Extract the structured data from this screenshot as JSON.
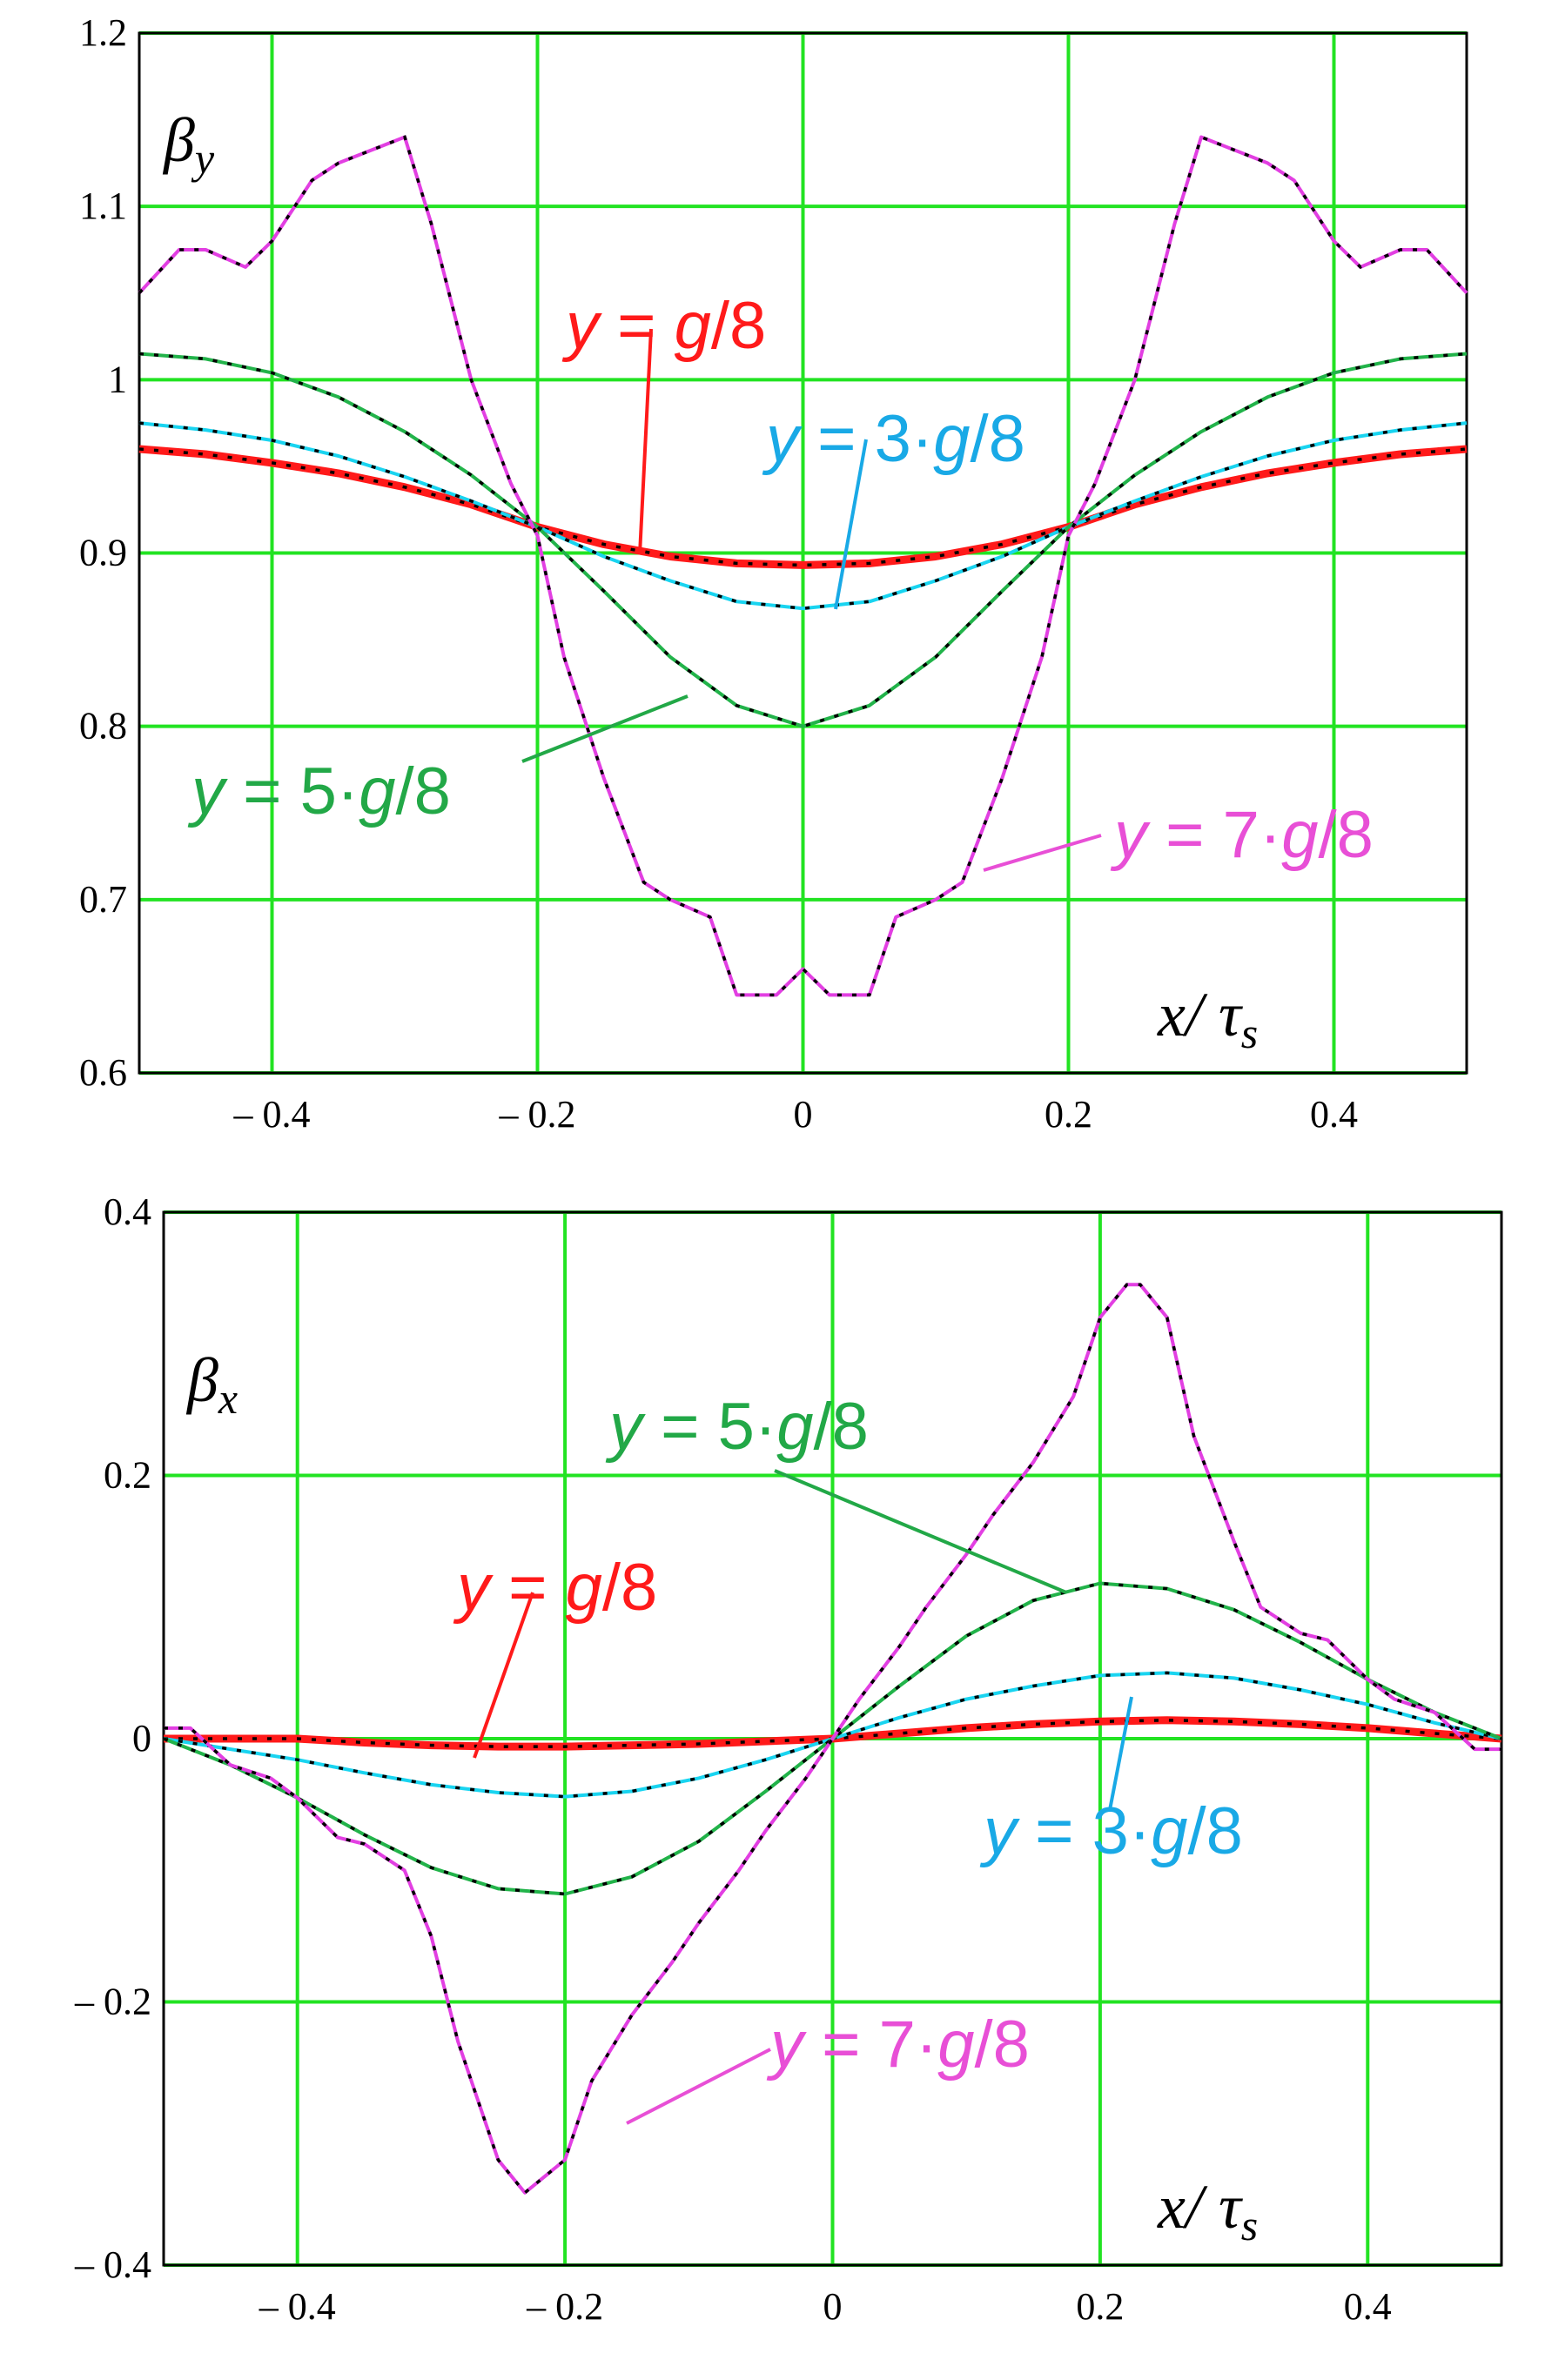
{
  "chart_data": [
    {
      "type": "line",
      "ylabel_symbol": "β",
      "ylabel_sub": "y",
      "xlabel_var": "x",
      "xlabel_sep": "/ ",
      "xlabel_sym": "τ",
      "xlabel_sub": "s",
      "xlim": [
        -0.5,
        0.5
      ],
      "ylim": [
        0.6,
        1.2
      ],
      "xticks": [
        -0.4,
        -0.2,
        0,
        0.2,
        0.4
      ],
      "xtick_labels": [
        "– 0.4",
        "– 0.2",
        "0",
        "0.2",
        "0.4"
      ],
      "yticks": [
        0.6,
        0.7,
        0.8,
        0.9,
        1.0,
        1.1,
        1.2
      ],
      "ytick_labels": [
        "0.6",
        "0.7",
        "0.8",
        "0.9",
        "1",
        "1.1",
        "1.2"
      ],
      "grid": true,
      "grid_color": "#22e322",
      "series": [
        {
          "label": "y = g/8",
          "color": "#ff1a1a",
          "x": [
            -0.5,
            -0.45,
            -0.4,
            -0.35,
            -0.3,
            -0.25,
            -0.2,
            -0.15,
            -0.1,
            -0.05,
            0,
            0.05,
            0.1,
            0.15,
            0.2,
            0.25,
            0.3,
            0.35,
            0.4,
            0.45,
            0.5
          ],
          "y": [
            0.96,
            0.957,
            0.952,
            0.946,
            0.938,
            0.928,
            0.915,
            0.905,
            0.898,
            0.894,
            0.893,
            0.894,
            0.898,
            0.905,
            0.915,
            0.928,
            0.938,
            0.946,
            0.952,
            0.957,
            0.96
          ]
        },
        {
          "label": "y = 3·g/8",
          "color": "#19d4f0",
          "x": [
            -0.5,
            -0.45,
            -0.4,
            -0.35,
            -0.3,
            -0.25,
            -0.2,
            -0.15,
            -0.1,
            -0.05,
            0,
            0.05,
            0.1,
            0.15,
            0.2,
            0.25,
            0.3,
            0.35,
            0.4,
            0.45,
            0.5
          ],
          "y": [
            0.975,
            0.971,
            0.965,
            0.956,
            0.944,
            0.93,
            0.915,
            0.898,
            0.884,
            0.872,
            0.868,
            0.872,
            0.884,
            0.898,
            0.915,
            0.93,
            0.944,
            0.956,
            0.965,
            0.971,
            0.975
          ]
        },
        {
          "label": "y = 5·g/8",
          "color": "#22b34a",
          "x": [
            -0.5,
            -0.45,
            -0.4,
            -0.35,
            -0.3,
            -0.25,
            -0.2,
            -0.15,
            -0.1,
            -0.05,
            0,
            0.05,
            0.1,
            0.15,
            0.2,
            0.25,
            0.3,
            0.35,
            0.4,
            0.45,
            0.5
          ],
          "y": [
            1.015,
            1.012,
            1.004,
            0.99,
            0.97,
            0.945,
            0.915,
            0.878,
            0.84,
            0.812,
            0.8,
            0.812,
            0.84,
            0.878,
            0.915,
            0.945,
            0.97,
            0.99,
            1.004,
            1.012,
            1.015
          ]
        },
        {
          "label": "y = 7·g/8",
          "color": "#e23fe2",
          "x": [
            -0.5,
            -0.47,
            -0.45,
            -0.42,
            -0.4,
            -0.37,
            -0.35,
            -0.3,
            -0.28,
            -0.25,
            -0.22,
            -0.2,
            -0.18,
            -0.15,
            -0.12,
            -0.1,
            -0.07,
            -0.05,
            -0.02,
            0,
            0.02,
            0.05,
            0.07,
            0.1,
            0.12,
            0.15,
            0.18,
            0.2,
            0.22,
            0.25,
            0.28,
            0.3,
            0.35,
            0.37,
            0.4,
            0.42,
            0.45,
            0.47,
            0.5
          ],
          "y": [
            1.05,
            1.075,
            1.075,
            1.065,
            1.08,
            1.115,
            1.125,
            1.14,
            1.09,
            1.0,
            0.94,
            0.91,
            0.84,
            0.77,
            0.71,
            0.7,
            0.69,
            0.645,
            0.645,
            0.66,
            0.645,
            0.645,
            0.69,
            0.7,
            0.71,
            0.77,
            0.84,
            0.91,
            0.94,
            1.0,
            1.09,
            1.14,
            1.125,
            1.115,
            1.08,
            1.065,
            1.075,
            1.075,
            1.05
          ]
        }
      ],
      "annotations": [
        {
          "var": "y",
          "rest": " = ",
          "italic2": "g",
          "tail": "/8",
          "color": "#ff1a1a"
        },
        {
          "var": "y",
          "rest": " = 3·",
          "italic2": "g",
          "tail": "/8",
          "color": "#19a9e6"
        },
        {
          "var": "y",
          "rest": " = 5·",
          "italic2": "g",
          "tail": "/8",
          "color": "#22a847"
        },
        {
          "var": "y",
          "rest": " = 7·",
          "italic2": "g",
          "tail": "/8",
          "color": "#e84fd6"
        }
      ]
    },
    {
      "type": "line",
      "ylabel_symbol": "β",
      "ylabel_sub": "x",
      "xlabel_var": "x",
      "xlabel_sep": "/ ",
      "xlabel_sym": "τ",
      "xlabel_sub": "s",
      "xlim": [
        -0.5,
        0.5
      ],
      "ylim": [
        -0.4,
        0.4
      ],
      "xticks": [
        -0.4,
        -0.2,
        0,
        0.2,
        0.4
      ],
      "xtick_labels": [
        "– 0.4",
        "– 0.2",
        "0",
        "0.2",
        "0.4"
      ],
      "yticks": [
        -0.4,
        -0.2,
        0,
        0.2,
        0.4
      ],
      "ytick_labels": [
        "– 0.4",
        "– 0.2",
        "0",
        "0.2",
        "0.4"
      ],
      "grid": true,
      "grid_color": "#22e322",
      "series": [
        {
          "label": "y = g/8",
          "color": "#ff1a1a",
          "x": [
            -0.5,
            -0.45,
            -0.4,
            -0.35,
            -0.3,
            -0.25,
            -0.2,
            -0.15,
            -0.1,
            -0.05,
            0,
            0.05,
            0.1,
            0.15,
            0.2,
            0.25,
            0.3,
            0.35,
            0.4,
            0.45,
            0.5
          ],
          "y": [
            0,
            0,
            0,
            -0.003,
            -0.005,
            -0.006,
            -0.006,
            -0.005,
            -0.004,
            -0.002,
            0,
            0.004,
            0.008,
            0.011,
            0.013,
            0.014,
            0.013,
            0.011,
            0.008,
            0.004,
            0
          ]
        },
        {
          "label": "y = 3·g/8",
          "color": "#19d4f0",
          "x": [
            -0.5,
            -0.45,
            -0.4,
            -0.35,
            -0.3,
            -0.25,
            -0.2,
            -0.15,
            -0.1,
            -0.05,
            0,
            0.05,
            0.1,
            0.15,
            0.2,
            0.25,
            0.3,
            0.35,
            0.4,
            0.45,
            0.5
          ],
          "y": [
            0,
            -0.008,
            -0.016,
            -0.026,
            -0.035,
            -0.041,
            -0.044,
            -0.04,
            -0.03,
            -0.016,
            0,
            0.016,
            0.03,
            0.04,
            0.048,
            0.05,
            0.046,
            0.037,
            0.026,
            0.012,
            0
          ]
        },
        {
          "label": "y = 5·g/8",
          "color": "#22b34a",
          "x": [
            -0.5,
            -0.45,
            -0.4,
            -0.35,
            -0.3,
            -0.25,
            -0.2,
            -0.15,
            -0.1,
            -0.05,
            0,
            0.05,
            0.1,
            0.15,
            0.2,
            0.25,
            0.3,
            0.35,
            0.4,
            0.45,
            0.5
          ],
          "y": [
            0,
            -0.02,
            -0.045,
            -0.073,
            -0.098,
            -0.114,
            -0.118,
            -0.105,
            -0.078,
            -0.04,
            0,
            0.04,
            0.078,
            0.105,
            0.118,
            0.114,
            0.098,
            0.073,
            0.045,
            0.02,
            0
          ]
        },
        {
          "label": "y = 7·g/8",
          "color": "#e23fe2",
          "x": [
            -0.5,
            -0.48,
            -0.45,
            -0.42,
            -0.4,
            -0.37,
            -0.35,
            -0.32,
            -0.3,
            -0.28,
            -0.25,
            -0.23,
            -0.2,
            -0.18,
            -0.15,
            -0.12,
            -0.1,
            -0.07,
            -0.05,
            -0.02,
            0,
            0.02,
            0.05,
            0.07,
            0.1,
            0.12,
            0.15,
            0.18,
            0.2,
            0.22,
            0.23,
            0.25,
            0.27,
            0.3,
            0.32,
            0.35,
            0.37,
            0.4,
            0.42,
            0.45,
            0.48,
            0.5
          ],
          "y": [
            0.008,
            0.008,
            -0.02,
            -0.03,
            -0.045,
            -0.075,
            -0.08,
            -0.1,
            -0.15,
            -0.23,
            -0.32,
            -0.345,
            -0.32,
            -0.26,
            -0.21,
            -0.17,
            -0.14,
            -0.1,
            -0.07,
            -0.03,
            0,
            0.03,
            0.07,
            0.1,
            0.14,
            0.17,
            0.21,
            0.26,
            0.32,
            0.345,
            0.345,
            0.32,
            0.23,
            0.15,
            0.1,
            0.08,
            0.075,
            0.045,
            0.03,
            0.02,
            -0.008,
            -0.008
          ]
        }
      ],
      "annotations": [
        {
          "var": "y",
          "rest": " = ",
          "italic2": "g",
          "tail": "/8",
          "color": "#ff1a1a"
        },
        {
          "var": "y",
          "rest": " = 3·",
          "italic2": "g",
          "tail": "/8",
          "color": "#19a9e6"
        },
        {
          "var": "y",
          "rest": " = 5·",
          "italic2": "g",
          "tail": "/8",
          "color": "#22a847"
        },
        {
          "var": "y",
          "rest": " = 7·",
          "italic2": "g",
          "tail": "/8",
          "color": "#e84fd6"
        }
      ]
    }
  ]
}
